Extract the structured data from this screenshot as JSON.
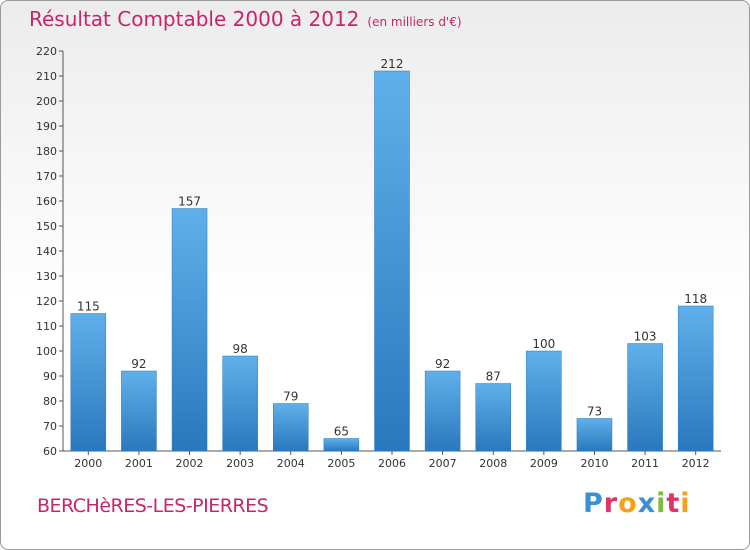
{
  "chart_data": {
    "type": "bar",
    "title": "Résultat Comptable 2000 à 2012",
    "subtitle": "(en milliers d'€)",
    "categories": [
      "2000",
      "2001",
      "2002",
      "2003",
      "2004",
      "2005",
      "2006",
      "2007",
      "2008",
      "2009",
      "2010",
      "2011",
      "2012"
    ],
    "values": [
      115,
      92,
      157,
      98,
      79,
      65,
      212,
      92,
      87,
      100,
      73,
      103,
      118
    ],
    "ylim": [
      60,
      220
    ],
    "ytick_step": 10,
    "grid": false,
    "bar_color": "#3b93d6",
    "bar_color_light": "#5fb0ea",
    "bar_color_dark": "#2a78bd"
  },
  "location": "BERCHèRES-LES-PIERRES",
  "logo": {
    "text": "Proxiti",
    "colors": [
      "#3a8fd6",
      "#e0336b",
      "#f3a21c",
      "#3a8fd6",
      "#7cbf3a",
      "#e0336b",
      "#f3a21c"
    ]
  },
  "colors": {
    "accent": "#c8246b",
    "axis": "#555555"
  }
}
